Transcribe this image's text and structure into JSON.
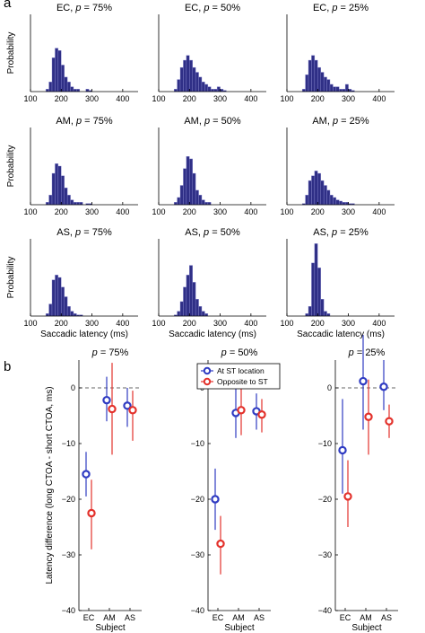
{
  "panel_labels": {
    "a": "a",
    "b": "b"
  },
  "hist_xlabel": "Saccadic latency (ms)",
  "hist_ylabel": "Probability",
  "hist_xticks": [
    "100",
    "200",
    "300",
    "400"
  ],
  "b_ylabel": "Latency difference (long CTOA - short CTOA, ms)",
  "b_xlabel": "Subject",
  "b_subjects": [
    "EC",
    "AM",
    "AS"
  ],
  "b_yticks": [
    "0",
    "−10",
    "−20",
    "−30",
    "−40"
  ],
  "b_legend": [
    "At ST location",
    "Opposite to ST"
  ],
  "colors": {
    "bar": "#2f2f86",
    "blue": "#2f3bc2",
    "red": "#e3312b",
    "zero": "#666666"
  },
  "chart_data": [
    {
      "type": "bar",
      "subject": "EC",
      "title_subject": "EC",
      "title_p": "75%",
      "bin_start": 150,
      "bin_width": 10,
      "values": [
        0.01,
        0.04,
        0.14,
        0.18,
        0.17,
        0.11,
        0.06,
        0.04,
        0.02,
        0.01,
        0.01,
        0.0,
        0.0,
        0.01,
        0.005,
        0.0,
        0.0,
        0.0,
        0.0,
        0.0
      ],
      "xlim": [
        100,
        450
      ],
      "xlabel": "",
      "ylabel": "Probability"
    },
    {
      "type": "bar",
      "subject": "EC",
      "title_subject": "EC",
      "title_p": "50%",
      "bin_start": 150,
      "bin_width": 10,
      "values": [
        0.01,
        0.05,
        0.1,
        0.13,
        0.15,
        0.13,
        0.1,
        0.08,
        0.06,
        0.04,
        0.03,
        0.02,
        0.01,
        0.01,
        0.02,
        0.01,
        0.005,
        0.0,
        0.0,
        0.0
      ],
      "xlim": [
        100,
        450
      ],
      "xlabel": "",
      "ylabel": ""
    },
    {
      "type": "bar",
      "subject": "EC",
      "title_subject": "EC",
      "title_p": "25%",
      "bin_start": 150,
      "bin_width": 10,
      "values": [
        0.01,
        0.07,
        0.13,
        0.15,
        0.13,
        0.1,
        0.08,
        0.06,
        0.05,
        0.03,
        0.02,
        0.02,
        0.01,
        0.01,
        0.03,
        0.01,
        0.005,
        0.0,
        0.0,
        0.0
      ],
      "xlim": [
        100,
        450
      ],
      "xlabel": "",
      "ylabel": ""
    },
    {
      "type": "bar",
      "subject": "AM",
      "title_subject": "AM",
      "title_p": "75%",
      "bin_start": 150,
      "bin_width": 10,
      "values": [
        0.01,
        0.04,
        0.13,
        0.17,
        0.16,
        0.12,
        0.07,
        0.04,
        0.02,
        0.01,
        0.01,
        0.01,
        0.0,
        0.005,
        0.005,
        0.0,
        0.0,
        0.0,
        0.0,
        0.0
      ],
      "xlim": [
        100,
        450
      ],
      "xlabel": "",
      "ylabel": "Probability"
    },
    {
      "type": "bar",
      "subject": "AM",
      "title_subject": "AM",
      "title_p": "50%",
      "bin_start": 150,
      "bin_width": 10,
      "values": [
        0.01,
        0.03,
        0.08,
        0.15,
        0.2,
        0.19,
        0.13,
        0.06,
        0.04,
        0.02,
        0.01,
        0.01,
        0.0,
        0.0,
        0.0,
        0.0,
        0.0,
        0.0,
        0.0,
        0.0
      ],
      "xlim": [
        100,
        450
      ],
      "xlabel": "",
      "ylabel": ""
    },
    {
      "type": "bar",
      "subject": "AM",
      "title_subject": "AM",
      "title_p": "25%",
      "bin_start": 150,
      "bin_width": 10,
      "values": [
        0.005,
        0.04,
        0.1,
        0.12,
        0.14,
        0.13,
        0.1,
        0.08,
        0.06,
        0.04,
        0.03,
        0.02,
        0.015,
        0.01,
        0.01,
        0.005,
        0.005,
        0.0,
        0.0,
        0.0
      ],
      "xlim": [
        100,
        450
      ],
      "xlabel": "",
      "ylabel": ""
    },
    {
      "type": "bar",
      "subject": "AS",
      "title_subject": "AS",
      "title_p": "75%",
      "bin_start": 150,
      "bin_width": 10,
      "values": [
        0.01,
        0.05,
        0.15,
        0.17,
        0.16,
        0.12,
        0.08,
        0.04,
        0.02,
        0.01,
        0.005,
        0.005,
        0.0,
        0.0,
        0.0,
        0.0,
        0.0,
        0.0,
        0.0,
        0.0
      ],
      "xlim": [
        100,
        450
      ],
      "xlabel": "Saccadic latency (ms)",
      "ylabel": "Probability"
    },
    {
      "type": "bar",
      "subject": "AS",
      "title_subject": "AS",
      "title_p": "50%",
      "bin_start": 150,
      "bin_width": 10,
      "values": [
        0.005,
        0.02,
        0.06,
        0.12,
        0.17,
        0.21,
        0.14,
        0.07,
        0.04,
        0.02,
        0.01,
        0.0,
        0.0,
        0.0,
        0.0,
        0.0,
        0.0,
        0.0,
        0.0,
        0.0
      ],
      "xlim": [
        100,
        450
      ],
      "xlabel": "Saccadic latency (ms)",
      "ylabel": ""
    },
    {
      "type": "bar",
      "subject": "AS",
      "title_subject": "AS",
      "title_p": "25%",
      "bin_start": 150,
      "bin_width": 10,
      "values": [
        0.0,
        0.01,
        0.04,
        0.22,
        0.3,
        0.2,
        0.07,
        0.02,
        0.01,
        0.0,
        0.0,
        0.0,
        0.0,
        0.0,
        0.0,
        0.0,
        0.0,
        0.0,
        0.0,
        0.0
      ],
      "xlim": [
        100,
        450
      ],
      "xlabel": "Saccadic latency (ms)",
      "ylabel": ""
    },
    {
      "type": "scatter",
      "title_p": "75%",
      "categories": [
        "EC",
        "AM",
        "AS"
      ],
      "ylim": [
        -40,
        5
      ],
      "xlabel": "Subject",
      "ylabel": "Latency difference (long CTOA - short CTOA, ms)",
      "series": [
        {
          "name": "At ST location",
          "values": [
            -15.5,
            -2.2,
            -3.2
          ],
          "lower": [
            -19.5,
            -6.0,
            -7.0
          ],
          "upper": [
            -11.5,
            2.0,
            0.0
          ]
        },
        {
          "name": "Opposite to ST",
          "values": [
            -22.5,
            -3.8,
            -4.0
          ],
          "lower": [
            -29.0,
            -12.0,
            -9.5
          ],
          "upper": [
            -16.5,
            4.5,
            -0.5
          ]
        }
      ]
    },
    {
      "type": "scatter",
      "title_p": "50%",
      "categories": [
        "EC",
        "AM",
        "AS"
      ],
      "ylim": [
        -40,
        5
      ],
      "xlabel": "Subject",
      "ylabel": "",
      "series": [
        {
          "name": "At ST location",
          "values": [
            -20.0,
            -4.5,
            -4.2
          ],
          "lower": [
            -25.5,
            -9.0,
            -7.5
          ],
          "upper": [
            -14.5,
            0.5,
            -1.0
          ]
        },
        {
          "name": "Opposite to ST",
          "values": [
            -28.0,
            -4.0,
            -4.8
          ],
          "lower": [
            -33.5,
            -8.5,
            -8.0
          ],
          "upper": [
            -23.0,
            1.0,
            -2.0
          ]
        }
      ]
    },
    {
      "type": "scatter",
      "title_p": "25%",
      "categories": [
        "EC",
        "AM",
        "AS"
      ],
      "ylim": [
        -40,
        5
      ],
      "xlabel": "Subject",
      "ylabel": "",
      "series": [
        {
          "name": "At ST location",
          "values": [
            -11.2,
            1.2,
            0.2
          ],
          "lower": [
            -19.0,
            -7.5,
            -4.0
          ],
          "upper": [
            -2.0,
            9.5,
            5.0
          ]
        },
        {
          "name": "Opposite to ST",
          "values": [
            -19.5,
            -5.2,
            -6.0
          ],
          "lower": [
            -25.0,
            -12.0,
            -9.0
          ],
          "upper": [
            -13.0,
            1.5,
            -3.0
          ]
        }
      ]
    }
  ]
}
